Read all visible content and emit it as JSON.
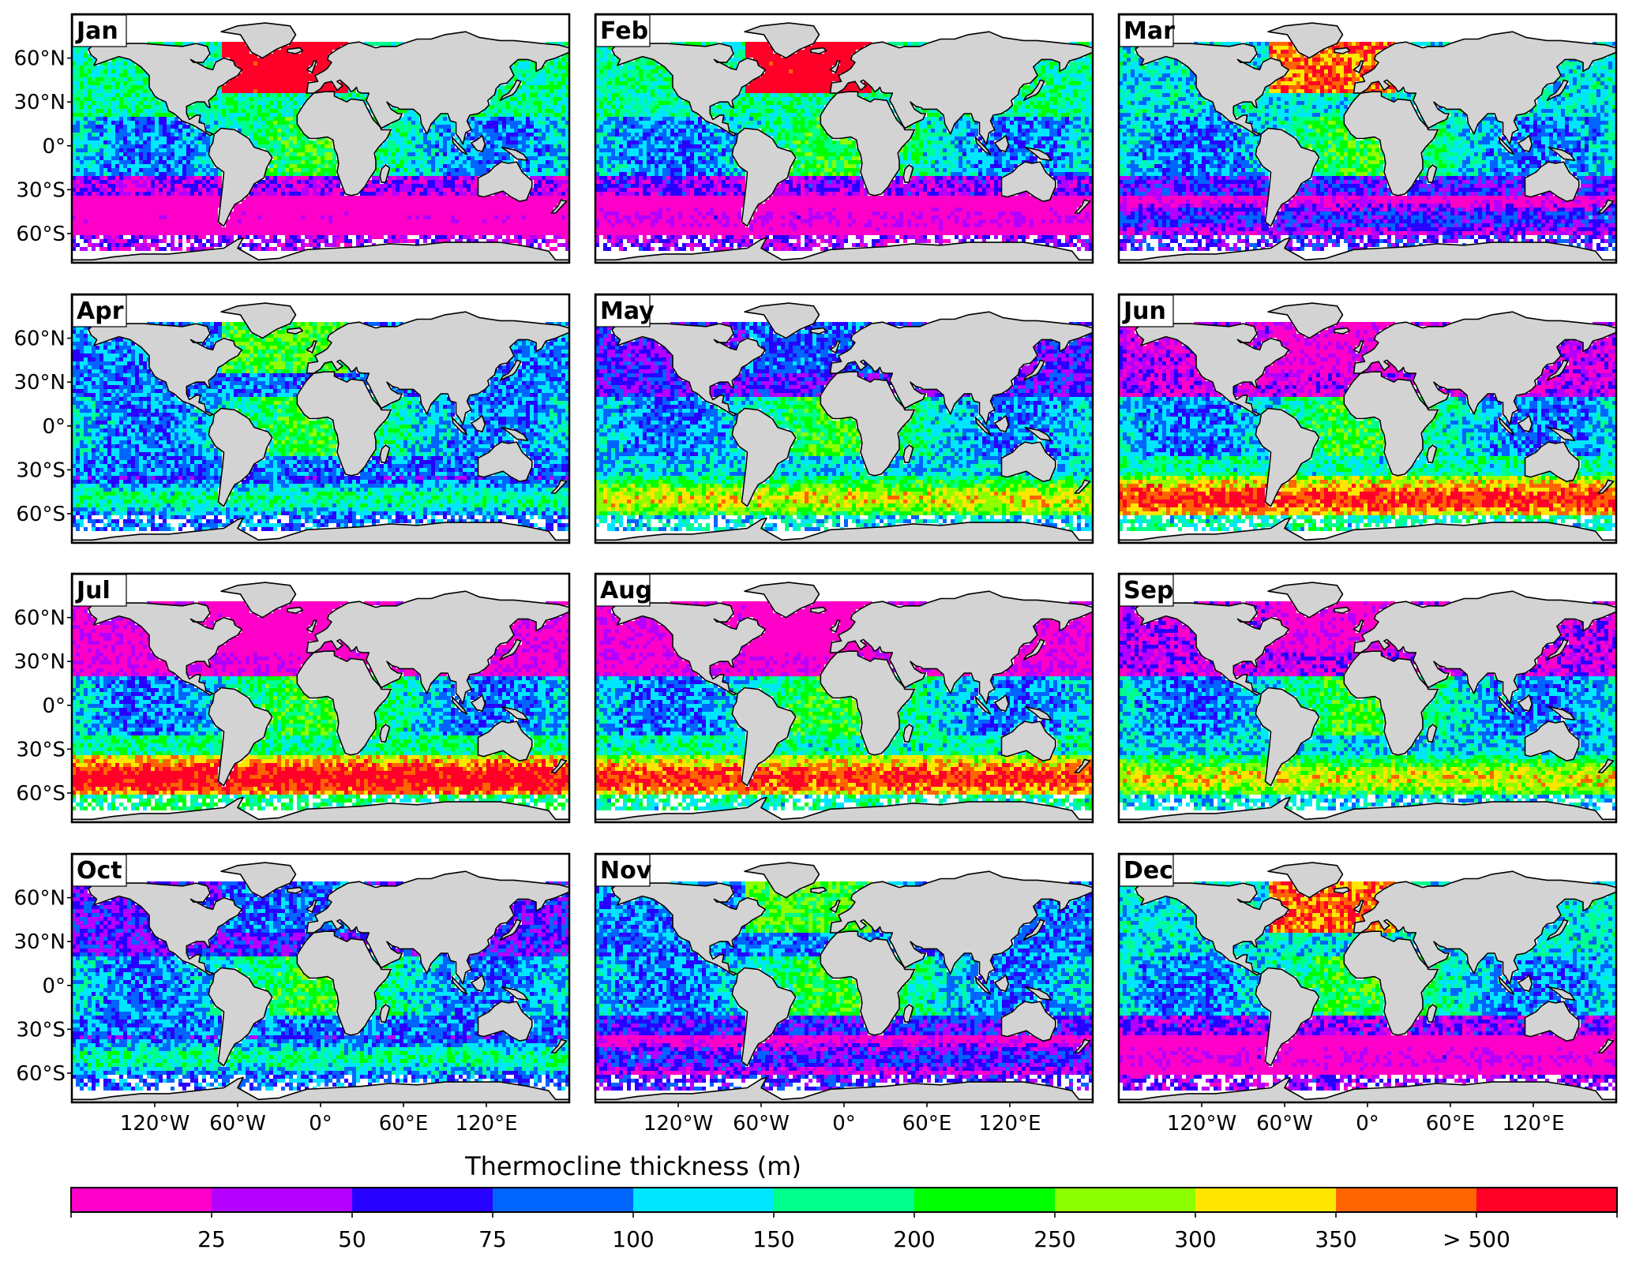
{
  "figure": {
    "panels": [
      {
        "month": "Jan",
        "row": 0,
        "col": 0
      },
      {
        "month": "Feb",
        "row": 0,
        "col": 1
      },
      {
        "month": "Mar",
        "row": 0,
        "col": 2
      },
      {
        "month": "Apr",
        "row": 1,
        "col": 0
      },
      {
        "month": "May",
        "row": 1,
        "col": 1
      },
      {
        "month": "Jun",
        "row": 1,
        "col": 2
      },
      {
        "month": "Jul",
        "row": 2,
        "col": 0
      },
      {
        "month": "Aug",
        "row": 2,
        "col": 1
      },
      {
        "month": "Sep",
        "row": 2,
        "col": 2
      },
      {
        "month": "Oct",
        "row": 3,
        "col": 0
      },
      {
        "month": "Nov",
        "row": 3,
        "col": 1
      },
      {
        "month": "Dec",
        "row": 3,
        "col": 2
      }
    ],
    "lat_ticks": [
      {
        "label": "60°N",
        "lat": 60
      },
      {
        "label": "30°N",
        "lat": 30
      },
      {
        "label": "0°",
        "lat": 0
      },
      {
        "label": "30°S",
        "lat": -30
      },
      {
        "label": "60°S",
        "lat": -60
      }
    ],
    "lon_ticks": [
      {
        "label": "120°W",
        "lon": -120
      },
      {
        "label": "60°W",
        "lon": -60
      },
      {
        "label": "0°",
        "lon": 0
      },
      {
        "label": "60°E",
        "lon": 60
      },
      {
        "label": "120°E",
        "lon": 120
      }
    ],
    "map_extent": {
      "lon": [
        -180,
        180
      ],
      "lat": [
        -80,
        90
      ]
    }
  },
  "colorbar": {
    "title": "Thermocline thickness (m)",
    "tick_labels": [
      "25",
      "50",
      "75",
      "100",
      "150",
      "200",
      "250",
      "300",
      "350",
      "> 500"
    ],
    "bins": [
      {
        "upper": "25",
        "color": "#ff00c8"
      },
      {
        "upper": "50",
        "color": "#b400ff"
      },
      {
        "upper": "75",
        "color": "#2800ff"
      },
      {
        "upper": "100",
        "color": "#0064ff"
      },
      {
        "upper": "150",
        "color": "#00e6ff"
      },
      {
        "upper": "200",
        "color": "#00ff8c"
      },
      {
        "upper": "250",
        "color": "#00ff00"
      },
      {
        "upper": "300",
        "color": "#8cff00"
      },
      {
        "upper": "350",
        "color": "#ffe600"
      },
      {
        "upper": "500",
        "color": "#ff6400"
      },
      {
        "upper": "> 500",
        "color": "#ff0028"
      }
    ]
  }
}
